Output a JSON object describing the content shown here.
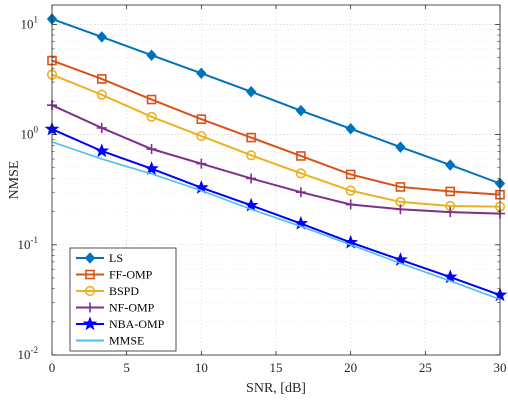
{
  "chart_data": {
    "type": "line",
    "title": "",
    "xlabel": "SNR, [dB]",
    "ylabel": "NMSE",
    "xlim": [
      0,
      30
    ],
    "ylim": [
      0.01,
      15
    ],
    "yscale": "log",
    "grid": true,
    "minor_grid": true,
    "legend_position": "bottom-left",
    "x": [
      0,
      3.333,
      6.667,
      10,
      13.333,
      16.667,
      20,
      23.333,
      26.667,
      30
    ],
    "x_ticks": [
      0,
      5,
      10,
      15,
      20,
      25,
      30
    ],
    "x_tick_labels": [
      "0",
      "5",
      "10",
      "15",
      "20",
      "25",
      "30"
    ],
    "y_ticks": [
      0.01,
      0.1,
      1,
      10
    ],
    "y_tick_labels": [
      {
        "base": "10",
        "exp": "-2"
      },
      {
        "base": "10",
        "exp": "-1"
      },
      {
        "base": "10",
        "exp": "0"
      },
      {
        "base": "10",
        "exp": "1"
      }
    ],
    "series": [
      {
        "name": "LS",
        "color": "#0072BD",
        "marker": "diamond",
        "values": [
          11.2,
          7.7,
          5.25,
          3.6,
          2.45,
          1.65,
          1.13,
          0.77,
          0.53,
          0.36
        ]
      },
      {
        "name": "FF-OMP",
        "color": "#D95319",
        "marker": "square",
        "values": [
          4.7,
          3.2,
          2.08,
          1.38,
          0.94,
          0.64,
          0.435,
          0.335,
          0.305,
          0.285
        ]
      },
      {
        "name": "BSPD",
        "color": "#EDB120",
        "marker": "circle",
        "values": [
          3.5,
          2.3,
          1.45,
          0.97,
          0.65,
          0.445,
          0.31,
          0.245,
          0.225,
          0.222
        ]
      },
      {
        "name": "NF-OMP",
        "color": "#7E2F8E",
        "marker": "plus",
        "values": [
          1.85,
          1.15,
          0.74,
          0.545,
          0.4,
          0.3,
          0.232,
          0.21,
          0.198,
          0.192
        ]
      },
      {
        "name": "NBA-OMP",
        "color": "#0000FF",
        "marker": "star",
        "values": [
          1.12,
          0.71,
          0.49,
          0.33,
          0.228,
          0.156,
          0.105,
          0.073,
          0.051,
          0.035
        ]
      },
      {
        "name": "MMSE",
        "color": "#4DBEEE",
        "marker": "none",
        "values": [
          0.86,
          0.6,
          0.44,
          0.31,
          0.21,
          0.147,
          0.1,
          0.068,
          0.047,
          0.032
        ]
      }
    ]
  }
}
